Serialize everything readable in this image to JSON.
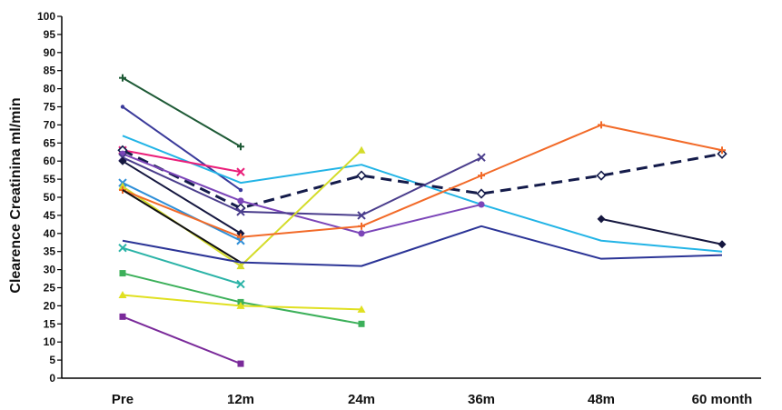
{
  "chart_data": {
    "type": "line",
    "title": "",
    "xlabel": "",
    "ylabel": "Clearence Creatinina ml/min",
    "categories": [
      "Pre",
      "12m",
      "24m",
      "36m",
      "48m",
      "60 month"
    ],
    "ylim": [
      0,
      100
    ],
    "yticks": [
      0,
      5,
      10,
      15,
      20,
      25,
      30,
      35,
      40,
      45,
      50,
      55,
      60,
      65,
      70,
      75,
      80,
      85,
      90,
      95,
      100
    ],
    "grid": false,
    "legend": "none",
    "series": [
      {
        "values": [
          83,
          64,
          null,
          null,
          null,
          null
        ],
        "color": "#1e5a36",
        "marker": "plus"
      },
      {
        "values": [
          75,
          52,
          null,
          null,
          null,
          null
        ],
        "color": "#3a3a9a",
        "marker": "dot"
      },
      {
        "values": [
          67,
          54,
          59,
          48,
          38,
          35
        ],
        "color": "#22b4e6",
        "marker": "none"
      },
      {
        "values": [
          63,
          57,
          null,
          null,
          null,
          null
        ],
        "color": "#ea1f7a",
        "marker": "x"
      },
      {
        "values": [
          63,
          47,
          56,
          51,
          56,
          62
        ],
        "color": "#141b4a",
        "marker": "diamond-open",
        "dashed": true
      },
      {
        "values": [
          62,
          49,
          40,
          48,
          null,
          null
        ],
        "color": "#7b45b8",
        "marker": "circle"
      },
      {
        "values": [
          61,
          46,
          45,
          61,
          null,
          null
        ],
        "color": "#4a3d8c",
        "marker": "x"
      },
      {
        "values": [
          60,
          40,
          null,
          null,
          null,
          null
        ],
        "color": "#15173f",
        "marker": "diamond"
      },
      {
        "values": [
          54,
          38,
          null,
          null,
          null,
          null
        ],
        "color": "#2e8fd8",
        "marker": "x"
      },
      {
        "values": [
          53,
          31,
          63,
          null,
          null,
          null
        ],
        "color": "#d4dc2a",
        "marker": "triangle"
      },
      {
        "values": [
          52,
          39,
          42,
          56,
          70,
          63
        ],
        "color": "#f26a28",
        "marker": "plus"
      },
      {
        "values": [
          52,
          32,
          null,
          null,
          null,
          null
        ],
        "color": "#111111",
        "marker": "none"
      },
      {
        "values": [
          38,
          32,
          31,
          42,
          33,
          34
        ],
        "color": "#2b3496",
        "marker": "none"
      },
      {
        "values": [
          36,
          26,
          null,
          null,
          null,
          null
        ],
        "color": "#2bb3a7",
        "marker": "x"
      },
      {
        "values": [
          29,
          21,
          15,
          null,
          null,
          null
        ],
        "color": "#3cb05a",
        "marker": "square"
      },
      {
        "values": [
          23,
          20,
          19,
          null,
          null,
          null
        ],
        "color": "#e0e020",
        "marker": "triangle"
      },
      {
        "values": [
          17,
          4,
          null,
          null,
          null,
          null
        ],
        "color": "#7a2a9a",
        "marker": "square"
      },
      {
        "values": [
          null,
          null,
          null,
          null,
          44,
          37
        ],
        "color": "#15173f",
        "marker": "diamond"
      }
    ]
  }
}
